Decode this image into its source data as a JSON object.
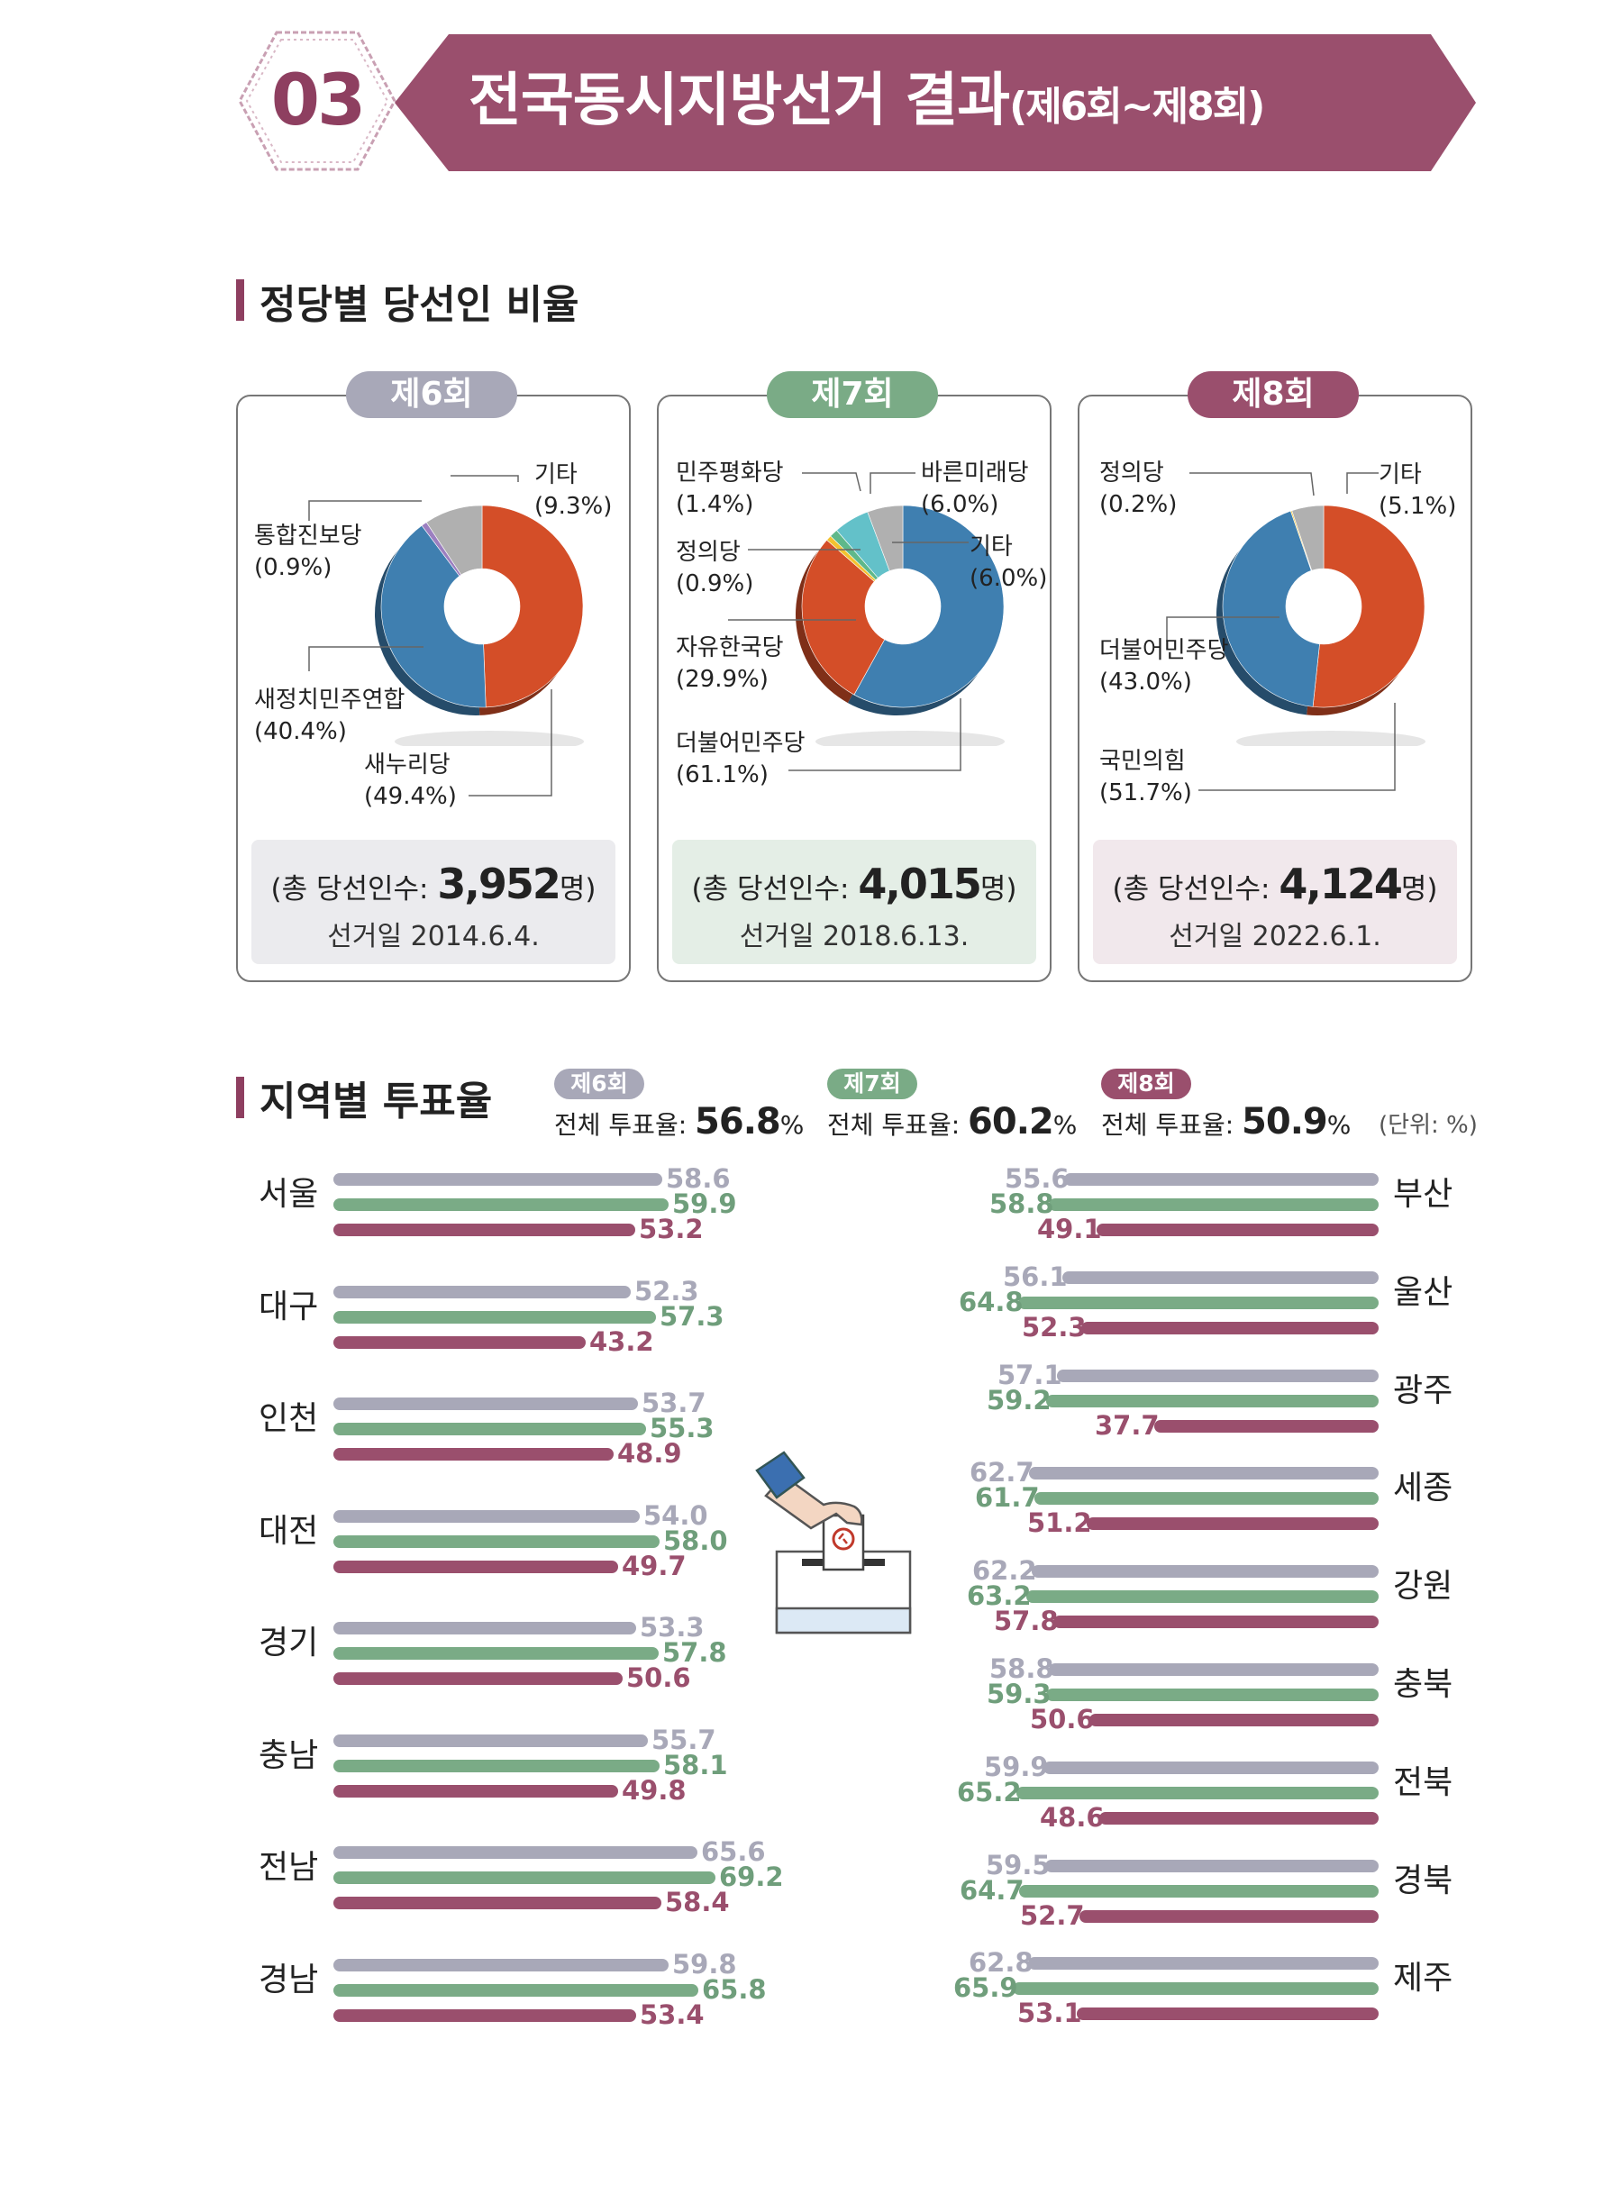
{
  "header": {
    "number": "03",
    "title": "전국동시지방선거 결과",
    "title_sub": "(제6회~제8회)"
  },
  "section1": {
    "title": "정당별 당선인 비율"
  },
  "section2": {
    "title": "지역별 투표율"
  },
  "colors": {
    "accent": "#8e3f60",
    "e6": "#a8a8b8",
    "e7": "#7aab86",
    "e8": "#9a4f6d",
    "orange": "#d44e28",
    "blue": "#3f7fb0",
    "gray": "#b0b0b0"
  },
  "chart_data": [
    {
      "type": "pie",
      "title": "제6회",
      "total_label": "(총 당선인수: ",
      "total_value": "3,952",
      "total_unit": "명)",
      "date": "선거일 2014.6.4.",
      "slices": [
        {
          "name": "새누리당",
          "value": 49.4,
          "label_pct": "(49.4%)",
          "color": "#d44e28"
        },
        {
          "name": "새정치민주연합",
          "value": 40.4,
          "label_pct": "(40.4%)",
          "color": "#3f7fb0"
        },
        {
          "name": "통합진보당",
          "value": 0.9,
          "label_pct": "(0.9%)",
          "color": "#9c7fc0"
        },
        {
          "name": "기타",
          "value": 9.3,
          "label_pct": "(9.3%)",
          "color": "#b0b0b0"
        }
      ]
    },
    {
      "type": "pie",
      "title": "제7회",
      "total_label": "(총 당선인수: ",
      "total_value": "4,015",
      "total_unit": "명)",
      "date": "선거일 2018.6.13.",
      "slices": [
        {
          "name": "더불어민주당",
          "value": 61.1,
          "label_pct": "(61.1%)",
          "color": "#3f7fb0"
        },
        {
          "name": "자유한국당",
          "value": 29.9,
          "label_pct": "(29.9%)",
          "color": "#d44e28"
        },
        {
          "name": "정의당",
          "value": 0.9,
          "label_pct": "(0.9%)",
          "color": "#f2c230"
        },
        {
          "name": "민주평화당",
          "value": 1.4,
          "label_pct": "(1.4%)",
          "color": "#5fb88a"
        },
        {
          "name": "바른미래당",
          "value": 6.0,
          "label_pct": "(6.0%)",
          "color": "#63c1c9"
        },
        {
          "name": "기타",
          "value": 6.0,
          "label_pct": "(6.0%)",
          "color": "#b0b0b0"
        }
      ]
    },
    {
      "type": "pie",
      "title": "제8회",
      "total_label": "(총 당선인수: ",
      "total_value": "4,124",
      "total_unit": "명)",
      "date": "선거일 2022.6.1.",
      "slices": [
        {
          "name": "국민의힘",
          "value": 51.7,
          "label_pct": "(51.7%)",
          "color": "#d44e28"
        },
        {
          "name": "더불어민주당",
          "value": 43.0,
          "label_pct": "(43.0%)",
          "color": "#3f7fb0"
        },
        {
          "name": "정의당",
          "value": 0.2,
          "label_pct": "(0.2%)",
          "color": "#f2c230"
        },
        {
          "name": "기타",
          "value": 5.1,
          "label_pct": "(5.1%)",
          "color": "#b0b0b0"
        }
      ]
    },
    {
      "type": "bar",
      "title": "지역별 투표율",
      "unit": "(단위: %)",
      "legend": [
        {
          "name": "제6회",
          "overall_label": "전체 투표율: ",
          "overall_value": "56.8",
          "pct": "%"
        },
        {
          "name": "제7회",
          "overall_label": "전체 투표율: ",
          "overall_value": "60.2",
          "pct": "%"
        },
        {
          "name": "제8회",
          "overall_label": "전체 투표율: ",
          "overall_value": "50.9",
          "pct": "%"
        }
      ],
      "left": [
        {
          "region": "서울",
          "values": [
            58.6,
            59.9,
            53.2
          ]
        },
        {
          "region": "대구",
          "values": [
            52.3,
            57.3,
            43.2
          ]
        },
        {
          "region": "인천",
          "values": [
            53.7,
            55.3,
            48.9
          ]
        },
        {
          "region": "대전",
          "values": [
            54.0,
            58.0,
            49.7
          ]
        },
        {
          "region": "경기",
          "values": [
            53.3,
            57.8,
            50.6
          ]
        },
        {
          "region": "충남",
          "values": [
            55.7,
            58.1,
            49.8
          ]
        },
        {
          "region": "전남",
          "values": [
            65.6,
            69.2,
            58.4
          ]
        },
        {
          "region": "경남",
          "values": [
            59.8,
            65.8,
            53.4
          ]
        }
      ],
      "right": [
        {
          "region": "부산",
          "values": [
            55.6,
            58.8,
            49.1
          ]
        },
        {
          "region": "울산",
          "values": [
            56.1,
            64.8,
            52.3
          ]
        },
        {
          "region": "광주",
          "values": [
            57.1,
            59.2,
            37.7
          ]
        },
        {
          "region": "세종",
          "values": [
            62.7,
            61.7,
            51.2
          ]
        },
        {
          "region": "강원",
          "values": [
            62.2,
            63.2,
            57.8
          ]
        },
        {
          "region": "충북",
          "values": [
            58.8,
            59.3,
            50.6
          ]
        },
        {
          "region": "전북",
          "values": [
            59.9,
            65.2,
            48.6
          ]
        },
        {
          "region": "경북",
          "values": [
            59.5,
            64.7,
            52.7
          ]
        },
        {
          "region": "제주",
          "values": [
            62.8,
            65.9,
            53.1
          ]
        }
      ]
    }
  ]
}
